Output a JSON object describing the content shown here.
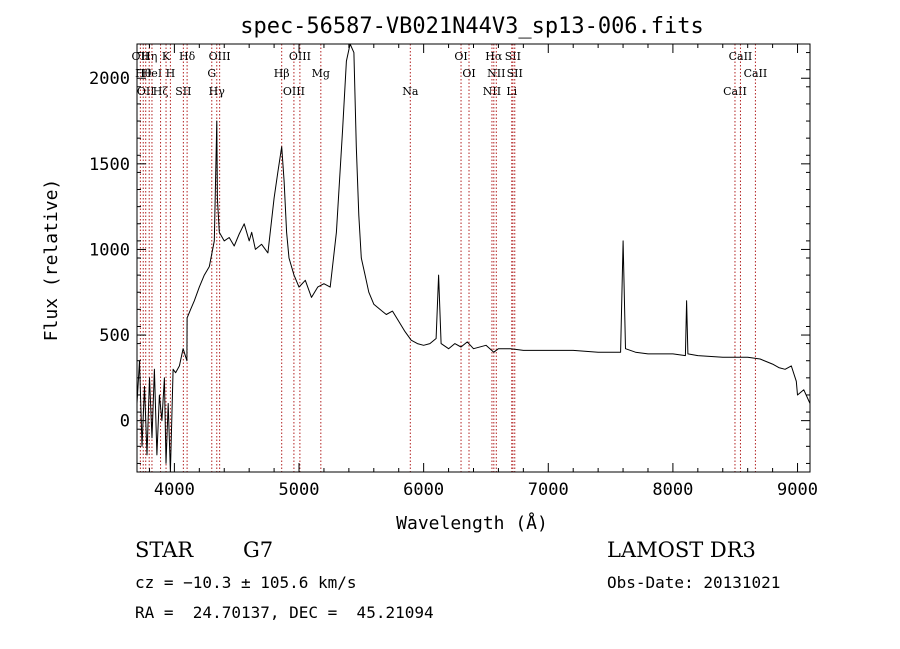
{
  "chart_data": {
    "type": "line",
    "title": "spec-56587-VB021N44V3_sp13-006.fits",
    "xlabel": "Wavelength (Å)",
    "ylabel": "Flux (relative)",
    "xlim": [
      3700,
      9100
    ],
    "ylim": [
      -300,
      2200
    ],
    "xticks": [
      4000,
      5000,
      6000,
      7000,
      8000,
      9000
    ],
    "yticks": [
      0,
      500,
      1000,
      1500,
      2000
    ],
    "grid": false,
    "colors": {
      "spectrum": "#000000",
      "lines": "#b22222",
      "axes": "#000000"
    },
    "series": [
      {
        "x": [
          3700,
          3720,
          3740,
          3760,
          3780,
          3800,
          3820,
          3840,
          3860,
          3880,
          3900,
          3920,
          3933,
          3950,
          3968,
          3990,
          4010,
          4040,
          4070,
          4100,
          4102,
          4130,
          4160,
          4200,
          4240,
          4280,
          4320,
          4340,
          4345,
          4360,
          4400,
          4440,
          4480,
          4520,
          4560,
          4600,
          4620,
          4650,
          4700,
          4750,
          4800,
          4830,
          4861,
          4880,
          4900,
          4920,
          4960,
          5000,
          5050,
          5100,
          5150,
          5200,
          5250,
          5300,
          5350,
          5380,
          5410,
          5440,
          5460,
          5480,
          5500,
          5530,
          5560,
          5600,
          5650,
          5700,
          5750,
          5800,
          5850,
          5900,
          5950,
          6000,
          6050,
          6100,
          6120,
          6140,
          6200,
          6250,
          6300,
          6350,
          6400,
          6500,
          6563,
          6600,
          6700,
          6800,
          7000,
          7200,
          7400,
          7580,
          7600,
          7620,
          7700,
          7800,
          8000,
          8100,
          8110,
          8120,
          8200,
          8400,
          8600,
          8700,
          8800,
          8850,
          8900,
          8950,
          8990,
          9000,
          9050,
          9100
        ],
        "y": [
          100,
          350,
          -150,
          200,
          -200,
          250,
          -100,
          300,
          -200,
          150,
          0,
          250,
          -250,
          100,
          -300,
          300,
          280,
          320,
          420,
          350,
          600,
          650,
          700,
          780,
          850,
          900,
          1050,
          1750,
          1300,
          1100,
          1050,
          1070,
          1020,
          1090,
          1150,
          1050,
          1100,
          1000,
          1030,
          980,
          1300,
          1450,
          1600,
          1400,
          1100,
          950,
          850,
          780,
          820,
          720,
          780,
          800,
          780,
          1100,
          1700,
          2100,
          2200,
          2150,
          1600,
          1200,
          950,
          850,
          750,
          680,
          650,
          620,
          640,
          580,
          520,
          470,
          450,
          440,
          450,
          480,
          850,
          450,
          420,
          450,
          430,
          460,
          420,
          440,
          400,
          420,
          420,
          410,
          410,
          410,
          400,
          400,
          1050,
          420,
          400,
          390,
          390,
          380,
          700,
          390,
          380,
          370,
          370,
          360,
          330,
          310,
          300,
          320,
          230,
          150,
          180,
          100
        ]
      }
    ],
    "line_markers": [
      {
        "wavelength": 3727,
        "label": "OII"
      },
      {
        "wavelength": 3750,
        "label": "Hθ"
      },
      {
        "wavelength": 3770,
        "label": "OII"
      },
      {
        "wavelength": 3798,
        "label": "Hη"
      },
      {
        "wavelength": 3820,
        "label": "HeI"
      },
      {
        "wavelength": 3889,
        "label": "Hζ"
      },
      {
        "wavelength": 3933,
        "label": "K"
      },
      {
        "wavelength": 3968,
        "label": "H"
      },
      {
        "wavelength": 4072,
        "label": "SII"
      },
      {
        "wavelength": 4102,
        "label": "Hδ"
      },
      {
        "wavelength": 4300,
        "label": "G"
      },
      {
        "wavelength": 4340,
        "label": "Hγ"
      },
      {
        "wavelength": 4363,
        "label": "OIII"
      },
      {
        "wavelength": 4861,
        "label": "Hβ"
      },
      {
        "wavelength": 4959,
        "label": "OIII"
      },
      {
        "wavelength": 5007,
        "label": "OIII"
      },
      {
        "wavelength": 5175,
        "label": "Mg"
      },
      {
        "wavelength": 5893,
        "label": "Na"
      },
      {
        "wavelength": 6300,
        "label": "OI"
      },
      {
        "wavelength": 6364,
        "label": "OI"
      },
      {
        "wavelength": 6548,
        "label": "NII"
      },
      {
        "wavelength": 6563,
        "label": "Hα"
      },
      {
        "wavelength": 6583,
        "label": "NII"
      },
      {
        "wavelength": 6707,
        "label": "Li"
      },
      {
        "wavelength": 6716,
        "label": "SII"
      },
      {
        "wavelength": 6731,
        "label": "SII"
      },
      {
        "wavelength": 8498,
        "label": "CaII"
      },
      {
        "wavelength": 8542,
        "label": "CaII"
      },
      {
        "wavelength": 8662,
        "label": "CaII"
      }
    ]
  },
  "info": {
    "object_class": "STAR",
    "subclass": "G7",
    "survey": "LAMOST DR3",
    "redshift": "cz = −10.3 ± 105.6 km/s",
    "obs_date": "Obs-Date: 20131021",
    "coords": "RA =  24.70137, DEC =  45.21094"
  }
}
